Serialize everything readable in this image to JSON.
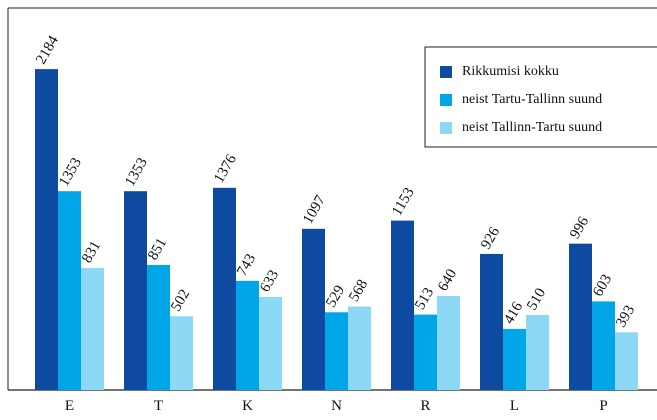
{
  "chart_data": {
    "type": "bar",
    "categories": [
      "E",
      "T",
      "K",
      "N",
      "R",
      "L",
      "P"
    ],
    "series": [
      {
        "name": "Rikkumisi kokku",
        "color": "#0d4aa0",
        "values": [
          2184,
          1353,
          1376,
          1097,
          1153,
          926,
          996
        ]
      },
      {
        "name": "neist Tartu-Tallinn suund",
        "color": "#00a6e8",
        "values": [
          1353,
          851,
          743,
          529,
          513,
          416,
          603
        ]
      },
      {
        "name": "neist Tallinn-Tartu suund",
        "color": "#8dd8f5",
        "values": [
          831,
          502,
          633,
          568,
          640,
          510,
          393
        ]
      }
    ],
    "ylim": [
      0,
      2600
    ],
    "legend": "upper right"
  }
}
